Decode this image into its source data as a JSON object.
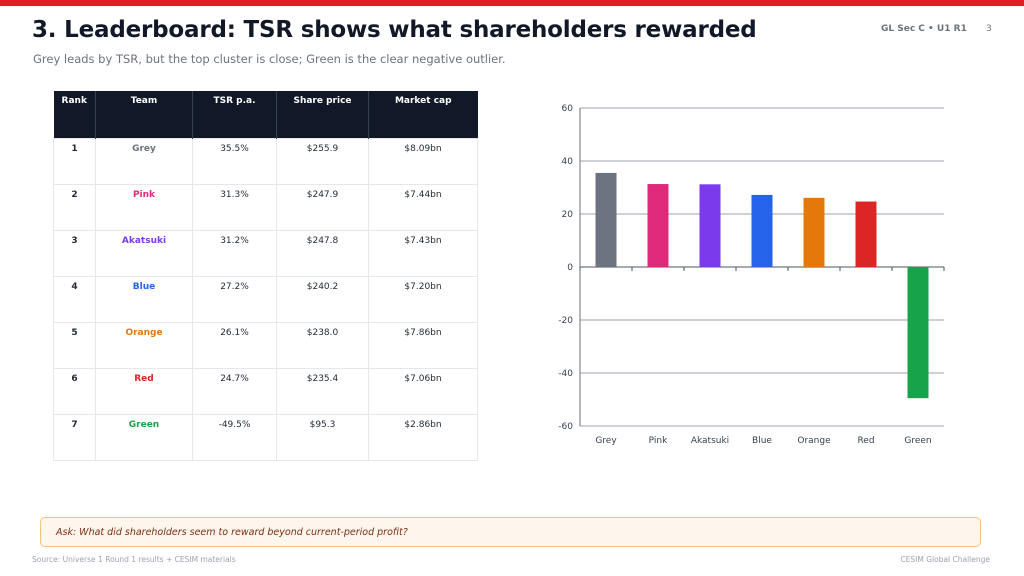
{
  "header": {
    "title": "3. Leaderboard: TSR shows what shareholders rewarded",
    "course_label": "GL Sec C • U1 R1",
    "page_number": "3",
    "subtitle": "Grey leads by TSR, but the top cluster is close; Green is the clear negative outlier."
  },
  "colors": {
    "accent": "#e31b23",
    "table_header": "#111827",
    "Grey": "#6b7280",
    "Pink": "#df2a7c",
    "Akatsuki": "#7c3aed",
    "Blue": "#2563eb",
    "Orange": "#e5780a",
    "Red": "#dc2626",
    "Green": "#16a34a"
  },
  "table": {
    "headers": [
      "Rank",
      "Team",
      "TSR p.a.",
      "Share price",
      "Market cap"
    ],
    "rows": [
      {
        "rank": "1",
        "team": "Grey",
        "tsr": "35.5%",
        "price": "$255.9",
        "cap": "$8.09bn"
      },
      {
        "rank": "2",
        "team": "Pink",
        "tsr": "31.3%",
        "price": "$247.9",
        "cap": "$7.44bn"
      },
      {
        "rank": "3",
        "team": "Akatsuki",
        "tsr": "31.2%",
        "price": "$247.8",
        "cap": "$7.43bn"
      },
      {
        "rank": "4",
        "team": "Blue",
        "tsr": "27.2%",
        "price": "$240.2",
        "cap": "$7.20bn"
      },
      {
        "rank": "5",
        "team": "Orange",
        "tsr": "26.1%",
        "price": "$238.0",
        "cap": "$7.86bn"
      },
      {
        "rank": "6",
        "team": "Red",
        "tsr": "24.7%",
        "price": "$235.4",
        "cap": "$7.06bn"
      },
      {
        "rank": "7",
        "team": "Green",
        "tsr": "-49.5%",
        "price": "$95.3",
        "cap": "$2.86bn"
      }
    ]
  },
  "chart_data": {
    "type": "bar",
    "categories": [
      "Grey",
      "Pink",
      "Akatsuki",
      "Blue",
      "Orange",
      "Red",
      "Green"
    ],
    "values": [
      35.5,
      31.3,
      31.2,
      27.2,
      26.1,
      24.7,
      -49.5
    ],
    "bar_colors": [
      "#6b7280",
      "#df2a7c",
      "#7c3aed",
      "#2563eb",
      "#e5780a",
      "#dc2626",
      "#16a34a"
    ],
    "yticks": [
      60,
      40,
      20,
      0,
      -20,
      -40,
      -60
    ],
    "ylim": [
      -60,
      60
    ],
    "grid": true,
    "title": "",
    "xlabel": "",
    "ylabel": ""
  },
  "callout": {
    "text": "Ask: What did shareholders seem to reward beyond current-period profit?"
  },
  "footer": {
    "source": "Source: Universe 1 Round 1 results + CESIM materials",
    "brand": "CESIM Global Challenge"
  }
}
